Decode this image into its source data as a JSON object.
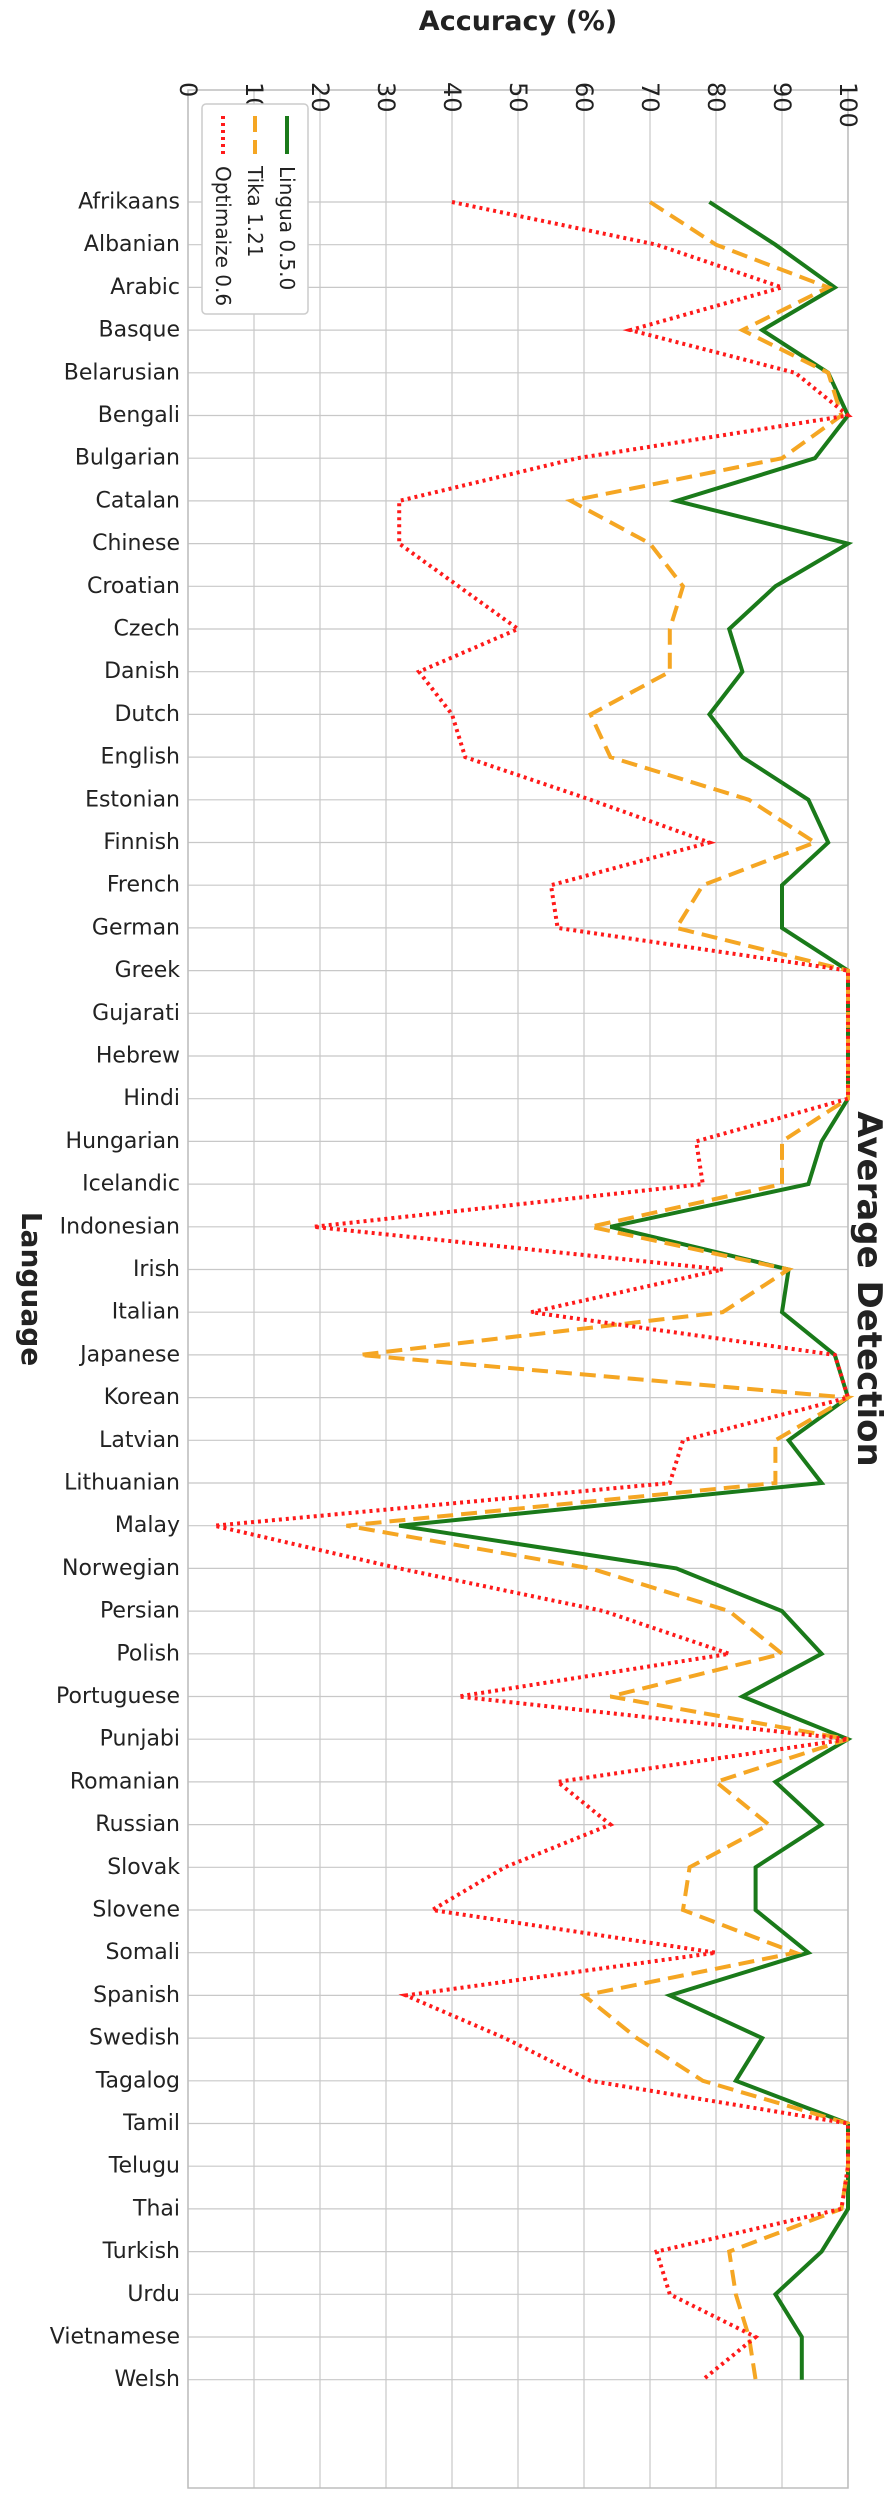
{
  "chart_data": {
    "type": "line",
    "title": "Average Detection",
    "xlabel": "Language",
    "ylabel": "Accuracy (%)",
    "ylim": [
      0,
      100
    ],
    "yticks": [
      "0",
      "10",
      "20",
      "30",
      "40",
      "50",
      "60",
      "70",
      "80",
      "90",
      "100"
    ],
    "grid": true,
    "legend_position": "top-left",
    "categories": [
      "Afrikaans",
      "Albanian",
      "Arabic",
      "Basque",
      "Belarusian",
      "Bengali",
      "Bulgarian",
      "Catalan",
      "Chinese",
      "Croatian",
      "Czech",
      "Danish",
      "Dutch",
      "English",
      "Estonian",
      "Finnish",
      "French",
      "German",
      "Greek",
      "Gujarati",
      "Hebrew",
      "Hindi",
      "Hungarian",
      "Icelandic",
      "Indonesian",
      "Irish",
      "Italian",
      "Japanese",
      "Korean",
      "Latvian",
      "Lithuanian",
      "Malay",
      "Norwegian",
      "Persian",
      "Polish",
      "Portuguese",
      "Punjabi",
      "Romanian",
      "Russian",
      "Slovak",
      "Slovene",
      "Somali",
      "Spanish",
      "Swedish",
      "Tagalog",
      "Tamil",
      "Telugu",
      "Thai",
      "Turkish",
      "Urdu",
      "Vietnamese",
      "Welsh"
    ],
    "series": [
      {
        "name": "Lingua 0.5.0",
        "color": "#1a7a1a",
        "dash": "solid",
        "values": [
          79,
          89,
          98,
          87,
          97,
          100,
          95,
          74,
          100,
          89,
          82,
          84,
          79,
          84,
          94,
          97,
          90,
          90,
          100,
          100,
          100,
          100,
          96,
          94,
          64,
          91,
          90,
          98,
          100,
          91,
          96,
          32,
          74,
          90,
          96,
          84,
          100,
          89,
          96,
          86,
          86,
          94,
          73,
          87,
          83,
          100,
          100,
          100,
          96,
          89,
          93,
          93
        ]
      },
      {
        "name": "Tika 1.21",
        "color": "#f5a623",
        "dash": "dashed",
        "values": [
          70,
          80,
          97,
          84,
          97,
          99,
          90,
          58,
          70,
          75,
          73,
          73,
          61,
          64,
          85,
          95,
          78,
          74,
          100,
          100,
          100,
          100,
          90,
          90,
          61,
          91,
          81,
          26,
          100,
          89,
          89,
          24,
          61,
          82,
          90,
          64,
          100,
          80,
          88,
          76,
          75,
          92,
          60,
          68,
          78,
          100,
          100,
          99,
          82,
          83,
          85,
          86
        ]
      },
      {
        "name": "Optimaize 0.6",
        "color": "#ff1a1a",
        "dash": "dotted",
        "values": [
          40,
          71,
          90,
          67,
          92,
          100,
          59,
          32,
          32,
          41,
          50,
          35,
          40,
          42,
          61,
          79,
          55,
          56,
          100,
          100,
          100,
          100,
          77,
          78,
          19,
          81,
          52,
          98,
          100,
          75,
          73,
          4,
          32,
          63,
          82,
          41,
          100,
          56,
          64,
          48,
          37,
          80,
          33,
          48,
          61,
          100,
          100,
          99,
          71,
          73,
          86,
          78
        ]
      }
    ]
  }
}
